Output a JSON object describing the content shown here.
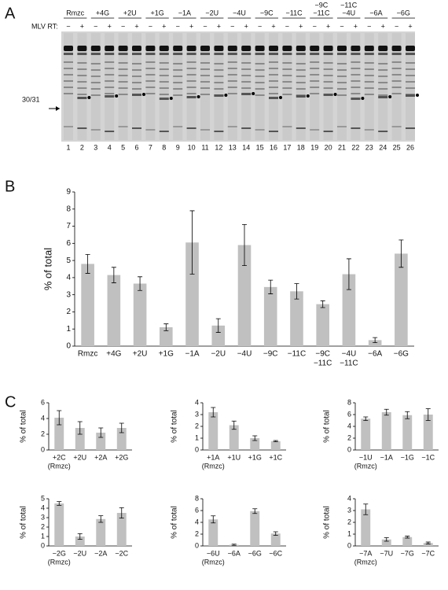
{
  "panels": [
    "A",
    "B",
    "C"
  ],
  "gel": {
    "groups": [
      "Rmzc",
      "+4G",
      "+2U",
      "+1G",
      "−1A",
      "−2U",
      "−4U",
      "−9C",
      "−11C",
      [
        "−9C",
        "−11C"
      ],
      [
        "−11C",
        "−4U"
      ],
      "−6A",
      "−6G"
    ],
    "rt_title": "MLV RT:",
    "rt_labels": [
      "−",
      "+"
    ],
    "marker": "30/31",
    "lane_numbers": [
      1,
      2,
      3,
      4,
      5,
      6,
      7,
      8,
      9,
      10,
      11,
      12,
      13,
      14,
      15,
      16,
      17,
      18,
      19,
      20,
      21,
      22,
      23,
      24,
      25,
      26
    ]
  },
  "chart_data": [
    {
      "type": "bar",
      "y_label": "% of total",
      "color": "#c0c0c0",
      "categories": [
        "Rmzc",
        "+4G",
        "+2U",
        "+1G",
        "−1A",
        "−2U",
        "−4U",
        "−9C",
        "−11C",
        [
          "−9C",
          "−11C"
        ],
        [
          "−4U",
          "−11C"
        ],
        "−6A",
        "−6G"
      ],
      "values": [
        4.8,
        4.15,
        3.65,
        1.1,
        6.05,
        1.2,
        5.9,
        3.45,
        3.2,
        2.45,
        4.2,
        0.35,
        5.4
      ],
      "errors": [
        0.55,
        0.45,
        0.4,
        0.2,
        1.85,
        0.4,
        1.2,
        0.4,
        0.45,
        0.2,
        0.9,
        0.15,
        0.8
      ],
      "ylim": [
        0,
        9
      ],
      "yticks": [
        0,
        1,
        2,
        3,
        4,
        5,
        6,
        7,
        8,
        9
      ]
    },
    {
      "type": "bar",
      "y_label": "% of total",
      "color": "#c0c0c0",
      "categories": [
        [
          "+2C",
          "(Rmzc)"
        ],
        "+2U",
        "+2A",
        "+2G"
      ],
      "values": [
        4.1,
        2.8,
        2.2,
        2.8
      ],
      "errors": [
        0.9,
        0.8,
        0.6,
        0.6
      ],
      "ylim": [
        0,
        6
      ],
      "yticks": [
        0,
        2,
        4,
        6
      ]
    },
    {
      "type": "bar",
      "y_label": "% of total",
      "color": "#c0c0c0",
      "categories": [
        [
          "+1A",
          "(Rmzc)"
        ],
        "+1U",
        "+1G",
        "+1C"
      ],
      "values": [
        3.2,
        2.1,
        1.0,
        0.75
      ],
      "errors": [
        0.4,
        0.35,
        0.2,
        0.05
      ],
      "ylim": [
        0,
        4
      ],
      "yticks": [
        0,
        1,
        2,
        3,
        4
      ]
    },
    {
      "type": "bar",
      "y_label": "% of total",
      "color": "#c0c0c0",
      "categories": [
        [
          "−1U",
          "(Rmzc)"
        ],
        "−1A",
        "−1G",
        "−1C"
      ],
      "values": [
        5.3,
        6.4,
        5.9,
        6.0
      ],
      "errors": [
        0.3,
        0.5,
        0.6,
        1.0
      ],
      "ylim": [
        0,
        8
      ],
      "yticks": [
        0,
        2,
        4,
        6,
        8
      ]
    },
    {
      "type": "bar",
      "y_label": "% of total",
      "color": "#c0c0c0",
      "categories": [
        [
          "−2G",
          "(Rmzc)"
        ],
        "−2U",
        "−2A",
        "−2C"
      ],
      "values": [
        4.5,
        1.0,
        2.85,
        3.5
      ],
      "errors": [
        0.2,
        0.3,
        0.35,
        0.55
      ],
      "ylim": [
        0,
        5
      ],
      "yticks": [
        0,
        1,
        2,
        3,
        4,
        5
      ]
    },
    {
      "type": "bar",
      "y_label": "% of total",
      "color": "#c0c0c0",
      "categories": [
        [
          "−6U",
          "(Rmzc)"
        ],
        "−6A",
        "−6G",
        "−6C"
      ],
      "values": [
        4.5,
        0.2,
        5.9,
        2.1
      ],
      "errors": [
        0.6,
        0.1,
        0.4,
        0.3
      ],
      "ylim": [
        0,
        8
      ],
      "yticks": [
        0,
        2,
        4,
        6,
        8
      ]
    },
    {
      "type": "bar",
      "y_label": "% of total",
      "color": "#c0c0c0",
      "categories": [
        [
          "−7A",
          "(Rmzc)"
        ],
        "−7U",
        "−7G",
        "−7C"
      ],
      "values": [
        3.1,
        0.55,
        0.75,
        0.25
      ],
      "errors": [
        0.45,
        0.15,
        0.08,
        0.08
      ],
      "ylim": [
        0,
        4
      ],
      "yticks": [
        0,
        1,
        2,
        3,
        4
      ]
    }
  ]
}
